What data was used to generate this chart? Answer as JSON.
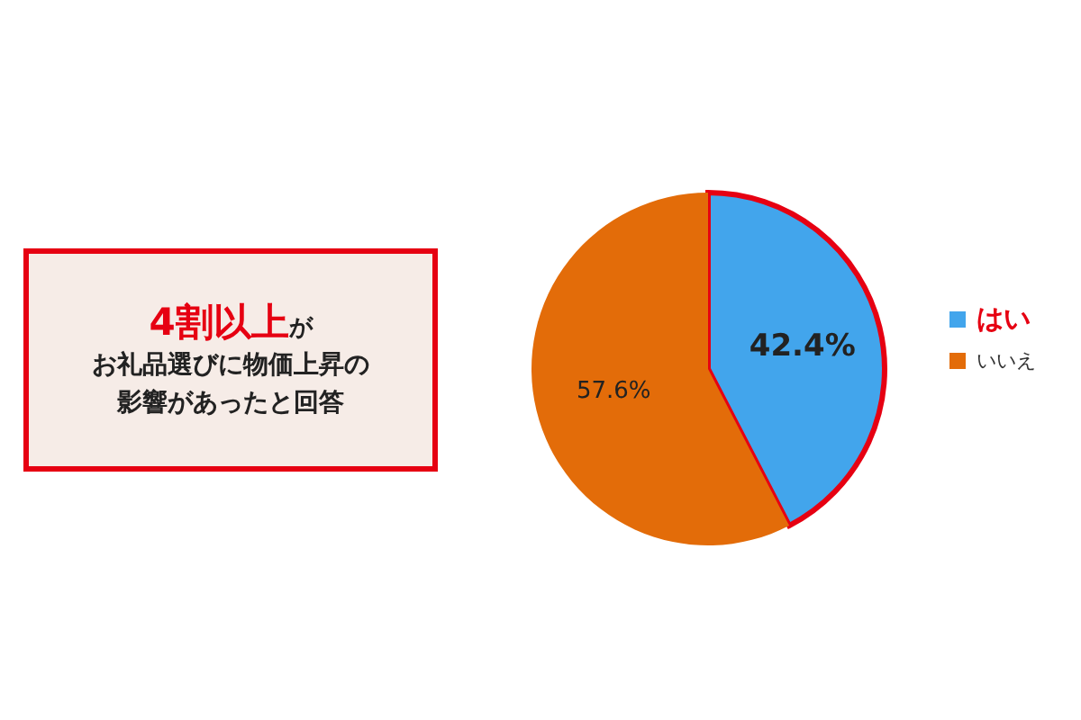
{
  "chart_data": {
    "type": "pie",
    "categories": [
      "はい",
      "いいえ"
    ],
    "values": [
      42.4,
      57.6
    ],
    "colors": [
      "#42a5ec",
      "#e36c09"
    ],
    "value_labels": [
      "42.4%",
      "57.6%"
    ],
    "legend": "right",
    "annotations": [
      "4割以上",
      "が",
      "お礼品選びに物価上昇の",
      "影響があったと回答"
    ]
  }
}
